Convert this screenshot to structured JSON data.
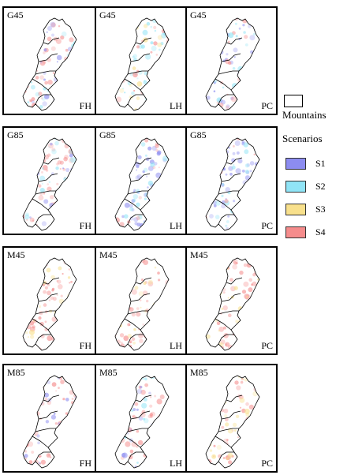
{
  "rows": [
    {
      "model": "G45",
      "panels": [
        {
          "model": "G45",
          "period": "FH",
          "dominant": [
            "S4",
            "S1",
            "S2"
          ]
        },
        {
          "model": "G45",
          "period": "LH",
          "dominant": [
            "S2",
            "S4",
            "S3"
          ]
        },
        {
          "model": "G45",
          "period": "PC",
          "dominant": [
            "S1",
            "S4",
            "S2"
          ]
        }
      ]
    },
    {
      "model": "G85",
      "panels": [
        {
          "model": "G85",
          "period": "FH",
          "dominant": [
            "S4",
            "S2",
            "S1"
          ]
        },
        {
          "model": "G85",
          "period": "LH",
          "dominant": [
            "S1",
            "S2",
            "S4"
          ]
        },
        {
          "model": "G85",
          "period": "PC",
          "dominant": [
            "S1",
            "S2",
            "S4"
          ]
        }
      ]
    },
    {
      "model": "M45",
      "panels": [
        {
          "model": "M45",
          "period": "FH",
          "dominant": [
            "S4",
            "S3"
          ]
        },
        {
          "model": "M45",
          "period": "LH",
          "dominant": [
            "S4",
            "S3"
          ]
        },
        {
          "model": "M45",
          "period": "PC",
          "dominant": [
            "S4",
            "S3"
          ]
        }
      ]
    },
    {
      "model": "M85",
      "panels": [
        {
          "model": "M85",
          "period": "FH",
          "dominant": [
            "S4",
            "S1"
          ]
        },
        {
          "model": "M85",
          "period": "LH",
          "dominant": [
            "S4",
            "S1",
            "S2"
          ]
        },
        {
          "model": "M85",
          "period": "PC",
          "dominant": [
            "S4",
            "S3"
          ]
        }
      ]
    }
  ],
  "legend": {
    "mountains_label": "Mountains",
    "scenarios_title": "Scenarios",
    "items": [
      {
        "label": "S1",
        "color": "#8c8cf0"
      },
      {
        "label": "S2",
        "color": "#90e4f6"
      },
      {
        "label": "S3",
        "color": "#f8e08c"
      },
      {
        "label": "S4",
        "color": "#f58c8c"
      }
    ]
  }
}
